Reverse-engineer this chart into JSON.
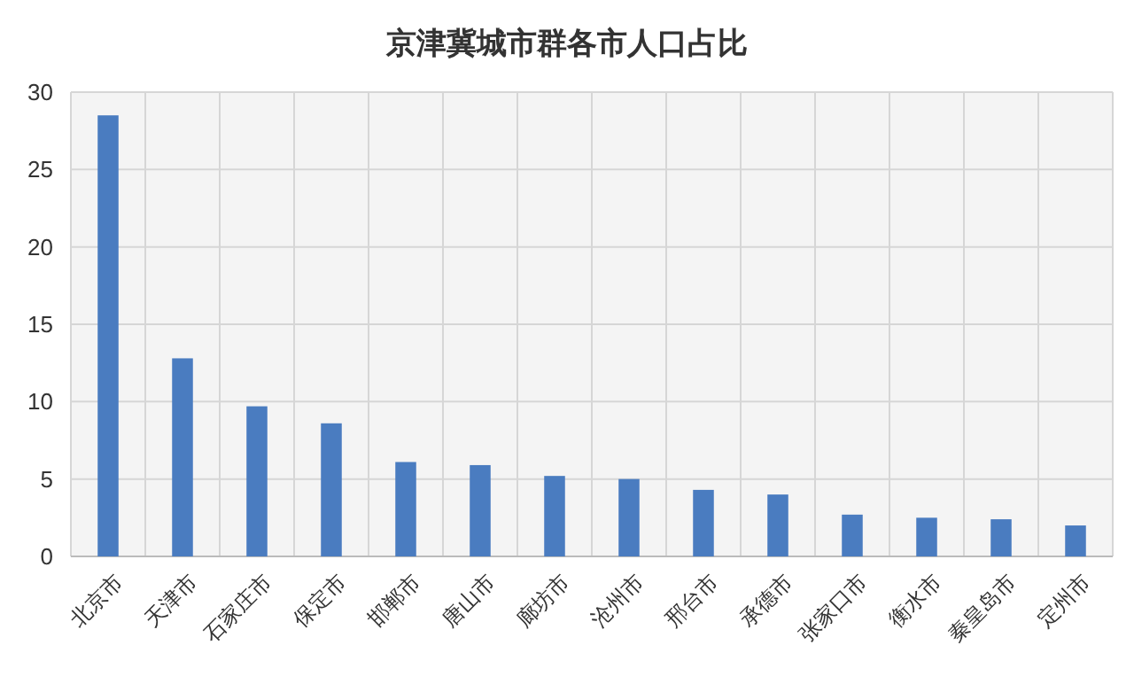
{
  "chart_data": {
    "type": "bar",
    "title": "京津冀城市群各市人口占比",
    "categories": [
      "北京市",
      "天津市",
      "石家庄市",
      "保定市",
      "邯郸市",
      "唐山市",
      "廊坊市",
      "沧州市",
      "邢台市",
      "承德市",
      "张家口市",
      "衡水市",
      "秦皇岛市",
      "定州市"
    ],
    "values": [
      28.5,
      12.8,
      9.7,
      8.6,
      6.1,
      5.9,
      5.2,
      5.0,
      4.3,
      4.0,
      2.7,
      2.5,
      2.4,
      2.0
    ],
    "color": "#4a7cc0",
    "ylim": [
      0,
      30
    ],
    "yticks": [
      0,
      5,
      10,
      15,
      20,
      25,
      30
    ],
    "grid": true
  }
}
